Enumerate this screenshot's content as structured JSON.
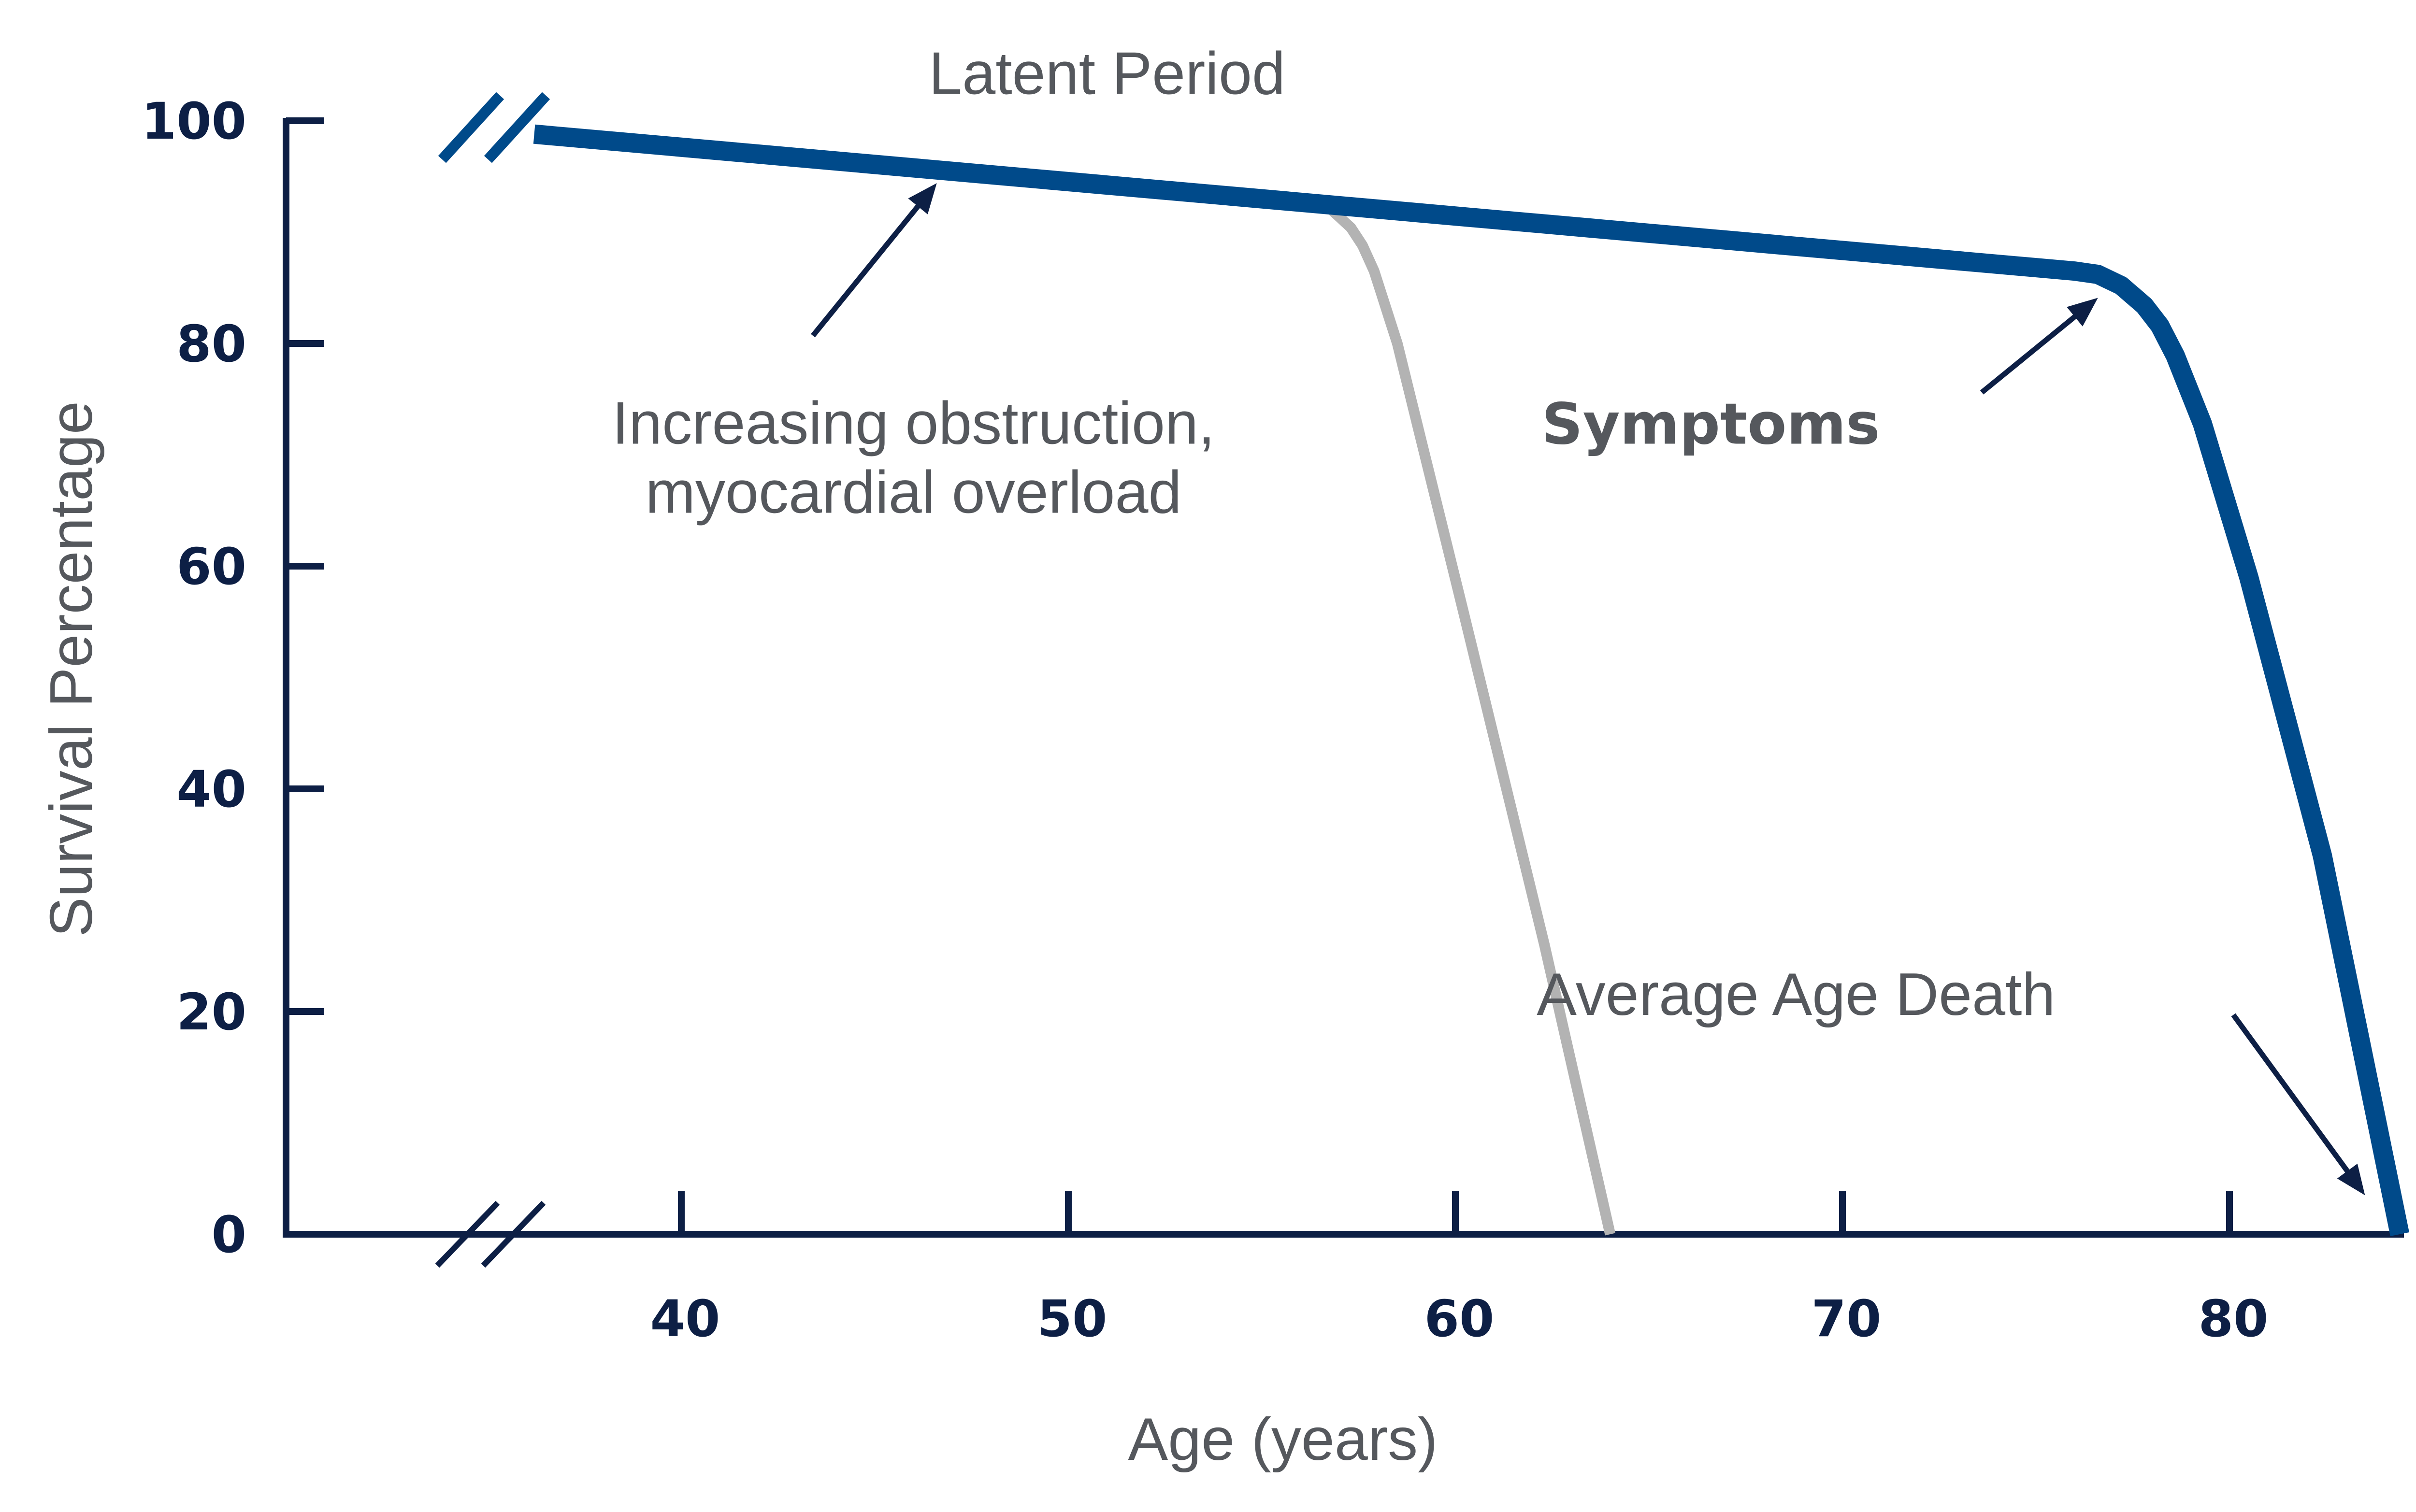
{
  "chart_data": {
    "type": "line",
    "title": "",
    "xlabel": "Age (years)",
    "ylabel": "Survival Percentage",
    "xlim": [
      30,
      85
    ],
    "ylim": [
      0,
      100
    ],
    "x_ticks": [
      40,
      50,
      60,
      70,
      80
    ],
    "y_ticks": [
      0,
      20,
      40,
      60,
      80,
      100
    ],
    "axis_break": true,
    "grid": false,
    "legend": "none",
    "series": [
      {
        "color": "#004a8a",
        "points": [
          {
            "x": 36.2,
            "y": 98.8
          },
          {
            "x": 76.0,
            "y": 86.5
          },
          {
            "x": 76.6,
            "y": 86.2
          },
          {
            "x": 77.2,
            "y": 85.2
          },
          {
            "x": 77.8,
            "y": 83.4
          },
          {
            "x": 78.2,
            "y": 81.6
          },
          {
            "x": 78.6,
            "y": 78.9
          },
          {
            "x": 79.3,
            "y": 72.8
          },
          {
            "x": 80.5,
            "y": 59.0
          },
          {
            "x": 82.4,
            "y": 34.0
          },
          {
            "x": 84.4,
            "y": 0
          }
        ]
      },
      {
        "color": "#b3b3b3",
        "points": [
          {
            "x": 56.3,
            "y": 92.5
          },
          {
            "x": 56.8,
            "y": 92.0
          },
          {
            "x": 57.3,
            "y": 90.4
          },
          {
            "x": 57.6,
            "y": 88.8
          },
          {
            "x": 57.9,
            "y": 86.5
          },
          {
            "x": 58.5,
            "y": 80.0
          },
          {
            "x": 60.2,
            "y": 56.0
          },
          {
            "x": 62.3,
            "y": 26.0
          },
          {
            "x": 64.0,
            "y": 0
          }
        ]
      }
    ],
    "annotations": [
      {
        "id": "latent",
        "text": "Latent Period",
        "x": 51.0,
        "y": 104.4
      },
      {
        "id": "obstruction",
        "lines": [
          "Increasing obstruction,",
          "myocardial overload"
        ],
        "x": 46.0,
        "y": 73.0,
        "arrow_from": [
          43.4,
          80.7
        ],
        "arrow_to": [
          46.6,
          94.4
        ]
      },
      {
        "id": "symptoms",
        "text": "Symptoms",
        "bold": true,
        "x": 66.6,
        "y": 73.0,
        "arrow_from": [
          73.6,
          75.6
        ],
        "arrow_to": [
          76.6,
          84.1
        ]
      },
      {
        "id": "average-age-death",
        "text": "Average Age Death",
        "x": 68.8,
        "y": 21.7,
        "arrow_from": [
          80.1,
          19.7
        ],
        "arrow_to": [
          83.5,
          3.5
        ]
      }
    ]
  },
  "colors": {
    "axis": "#0d1f45",
    "main_curve": "#004a8a",
    "alt_curve": "#b3b3b3",
    "arrow": "#0d1f45",
    "text": "#55585d"
  }
}
